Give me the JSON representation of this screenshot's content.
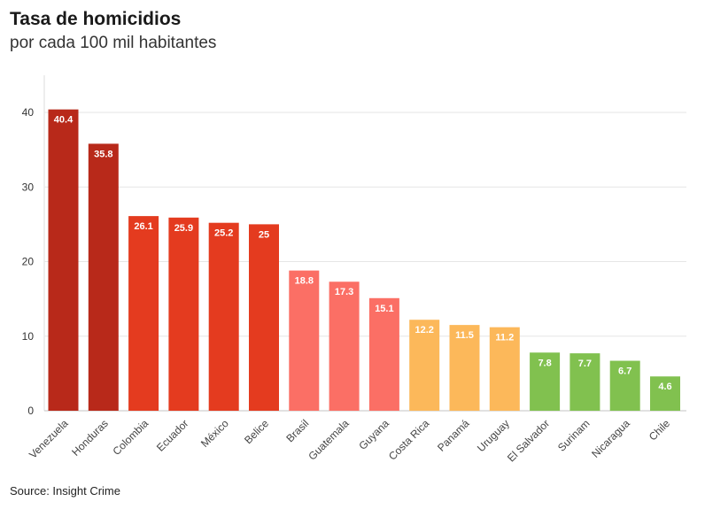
{
  "title": "Tasa de homicidios",
  "subtitle": "por cada 100 mil habitantes",
  "source": "Source: Insight Crime",
  "chart_data": {
    "type": "bar",
    "categories": [
      "Venezuela",
      "Honduras",
      "Colombia",
      "Ecuador",
      "México",
      "Belice",
      "Brasil",
      "Guatemala",
      "Guyana",
      "Costa Rica",
      "Panamá",
      "Uruguay",
      "El Salvador",
      "Surinam",
      "Nicaragua",
      "Chile"
    ],
    "values": [
      40.4,
      35.8,
      26.1,
      25.9,
      25.2,
      25,
      18.8,
      17.3,
      15.1,
      12.2,
      11.5,
      11.2,
      7.8,
      7.7,
      6.7,
      4.6
    ],
    "value_labels": [
      "40.4",
      "35.8",
      "26.1",
      "25.9",
      "25.2",
      "25",
      "18.8",
      "17.3",
      "15.1",
      "12.2",
      "11.5",
      "11.2",
      "7.8",
      "7.7",
      "6.7",
      "4.6"
    ],
    "colors": [
      "#b8291a",
      "#b8291a",
      "#e43b1f",
      "#e43b1f",
      "#e43b1f",
      "#e43b1f",
      "#fb6f65",
      "#fb6f65",
      "#fb6f65",
      "#fcb85a",
      "#fcb85a",
      "#fcb85a",
      "#81c14f",
      "#81c14f",
      "#81c14f",
      "#81c14f"
    ],
    "yticks": [
      0,
      10,
      20,
      30,
      40
    ],
    "ylim": [
      0,
      45
    ],
    "grid": true,
    "xlabel": "",
    "ylabel": ""
  }
}
